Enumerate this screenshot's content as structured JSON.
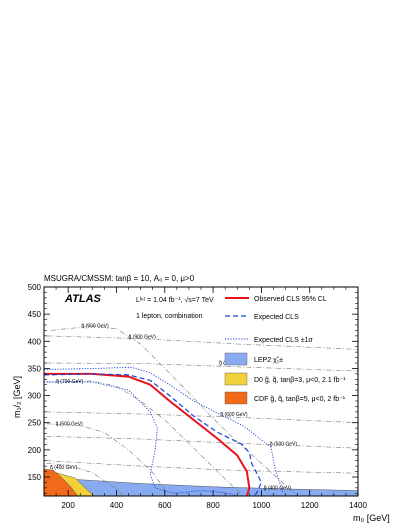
{
  "chart_data": {
    "type": "line",
    "header": "MSUGRA/CMSSM: tanβ = 10, A₀ = 0, μ>0",
    "title": "",
    "xlabel": "m₀ [GeV]",
    "ylabel": "m₁/₂ [GeV]",
    "xlim": [
      100,
      1400
    ],
    "ylim": [
      115,
      500
    ],
    "x_ticks": [
      "200",
      "400",
      "600",
      "800",
      "1000",
      "1200",
      "1400"
    ],
    "y_ticks": [
      "150",
      "200",
      "250",
      "300",
      "350",
      "400",
      "450",
      "500"
    ],
    "y_tick_values": [
      150,
      200,
      250,
      300,
      350,
      400,
      450,
      500
    ],
    "x_tick_values": [
      200,
      400,
      600,
      800,
      1000,
      1200,
      1400
    ],
    "texts": {
      "atlas": "ATLAS",
      "lumi": "Lᴵⁿᵗ = 1.04 fb⁻¹, √s=7 TeV",
      "channel": "1 lepton, combination"
    },
    "legend": [
      {
        "label": "Observed CLS 95% CL",
        "color": "#e8121a",
        "style": "solid"
      },
      {
        "label": "Expected CLS",
        "color": "#1a3fd6",
        "style": "dashed"
      },
      {
        "label": "Expected CLS ±1σ",
        "color": "#1a3fd6",
        "style": "dotted"
      },
      {
        "label": "LEP2 χ̃₁±",
        "color": "#88aaf0",
        "style": "box"
      },
      {
        "label": "D0 g̃, q̃, tanβ=3, μ<0, 2.1 fb⁻¹",
        "color": "#f2d23a",
        "style": "box"
      },
      {
        "label": "CDF g̃, q̃, tanβ=5, μ<0, 2 fb⁻¹",
        "color": "#f06a1a",
        "style": "box"
      }
    ],
    "series": [
      {
        "name": "Observed CLS 95% CL",
        "points": [
          [
            100,
            340
          ],
          [
            300,
            340
          ],
          [
            450,
            335
          ],
          [
            540,
            320
          ],
          [
            620,
            290
          ],
          [
            720,
            255
          ],
          [
            820,
            220
          ],
          [
            900,
            190
          ],
          [
            940,
            160
          ],
          [
            950,
            130
          ],
          [
            940,
            115
          ]
        ]
      },
      {
        "name": "Expected CLS",
        "points": [
          [
            100,
            338
          ],
          [
            300,
            340
          ],
          [
            450,
            338
          ],
          [
            540,
            328
          ],
          [
            620,
            300
          ],
          [
            720,
            262
          ],
          [
            820,
            232
          ],
          [
            920,
            210
          ],
          [
            950,
            195
          ],
          [
            960,
            175
          ],
          [
            1000,
            140
          ],
          [
            980,
            120
          ],
          [
            965,
            115
          ]
        ]
      },
      {
        "name": "Expected CLS +1σ",
        "points": [
          [
            100,
            348
          ],
          [
            320,
            350
          ],
          [
            460,
            352
          ],
          [
            540,
            342
          ],
          [
            620,
            320
          ],
          [
            720,
            290
          ],
          [
            830,
            265
          ],
          [
            930,
            243
          ],
          [
            980,
            225
          ],
          [
            1040,
            205
          ],
          [
            1050,
            180
          ],
          [
            1060,
            160
          ],
          [
            1075,
            140
          ],
          [
            1090,
            120
          ]
        ]
      },
      {
        "name": "Expected CLS -1σ",
        "points": [
          [
            100,
            325
          ],
          [
            300,
            325
          ],
          [
            450,
            310
          ],
          [
            540,
            270
          ],
          [
            570,
            240
          ],
          [
            560,
            200
          ],
          [
            540,
            155
          ],
          [
            560,
            130
          ],
          [
            640,
            120
          ],
          [
            750,
            125
          ],
          [
            830,
            122
          ],
          [
            880,
            118
          ],
          [
            900,
            115
          ]
        ]
      }
    ],
    "squark_contours": [
      {
        "label": "q̃ (900 GeV)",
        "label_at": [
          255,
          425
        ],
        "points": [
          [
            130,
            420
          ],
          [
            300,
            428
          ],
          [
            400,
            423
          ],
          [
            500,
            395
          ],
          [
            600,
            350
          ],
          [
            700,
            305
          ],
          [
            800,
            258
          ],
          [
            900,
            215
          ],
          [
            1000,
            175
          ],
          [
            1100,
            135
          ],
          [
            1150,
            115
          ]
        ]
      },
      {
        "label": "q̃ (700 GeV)",
        "label_at": [
          150,
          323
        ],
        "points": [
          [
            110,
            325
          ],
          [
            300,
            327
          ],
          [
            400,
            317
          ],
          [
            500,
            290
          ],
          [
            600,
            255
          ],
          [
            700,
            212
          ],
          [
            800,
            168
          ],
          [
            900,
            125
          ],
          [
            920,
            115
          ]
        ]
      },
      {
        "label": "q̃ (500 GeV)",
        "label_at": [
          148,
          245
        ],
        "points": [
          [
            110,
            248
          ],
          [
            250,
            245
          ],
          [
            350,
            232
          ],
          [
            450,
            200
          ],
          [
            550,
            158
          ],
          [
            620,
            115
          ]
        ]
      },
      {
        "label": "q̃ (400 GeV)",
        "label_at": [
          125,
          165
        ],
        "points": [
          [
            110,
            175
          ],
          [
            200,
            172
          ],
          [
            300,
            158
          ],
          [
            400,
            128
          ],
          [
            430,
            115
          ]
        ]
      }
    ],
    "gluino_contours": [
      {
        "label": "g̃ (900 GeV)",
        "label_at": [
          450,
          405
        ],
        "points": [
          [
            110,
            410
          ],
          [
            500,
            405
          ],
          [
            900,
            395
          ],
          [
            1400,
            385
          ]
        ]
      },
      {
        "label": "g̃ (800 GeV)",
        "label_at": [
          825,
          357
        ],
        "points": [
          [
            110,
            360
          ],
          [
            500,
            359
          ],
          [
            900,
            353
          ],
          [
            1400,
            345
          ]
        ]
      },
      {
        "label": "g̃ (600 GeV)",
        "label_at": [
          830,
          262
        ],
        "points": [
          [
            110,
            270
          ],
          [
            500,
            266
          ],
          [
            900,
            260
          ],
          [
            1400,
            250
          ]
        ]
      },
      {
        "label": "g̃ (500 GeV)",
        "label_at": [
          1035,
          208
        ],
        "points": [
          [
            110,
            225
          ],
          [
            500,
            220
          ],
          [
            900,
            212
          ],
          [
            1400,
            203
          ]
        ]
      },
      {
        "label": "g̃ (400 GeV)",
        "label_at": [
          1010,
          127
        ],
        "points": [
          [
            110,
            180
          ],
          [
            500,
            170
          ],
          [
            900,
            162
          ],
          [
            1400,
            157
          ]
        ]
      }
    ],
    "excluded_regions": [
      {
        "name": "LEP2",
        "color": "#88aaf0",
        "points": [
          [
            100,
            150
          ],
          [
            250,
            145
          ],
          [
            500,
            138
          ],
          [
            800,
            132
          ],
          [
            1100,
            128
          ],
          [
            1400,
            125
          ],
          [
            1400,
            115
          ],
          [
            100,
            115
          ]
        ]
      },
      {
        "name": "D0",
        "color": "#f2d23a",
        "points": [
          [
            100,
            160
          ],
          [
            150,
            158
          ],
          [
            230,
            148
          ],
          [
            270,
            130
          ],
          [
            300,
            118
          ],
          [
            310,
            115
          ],
          [
            100,
            115
          ]
        ]
      },
      {
        "name": "CDF",
        "color": "#f06a1a",
        "points": [
          [
            100,
            165
          ],
          [
            140,
            162
          ],
          [
            175,
            148
          ],
          [
            210,
            132
          ],
          [
            240,
            115
          ],
          [
            100,
            115
          ]
        ]
      }
    ]
  }
}
